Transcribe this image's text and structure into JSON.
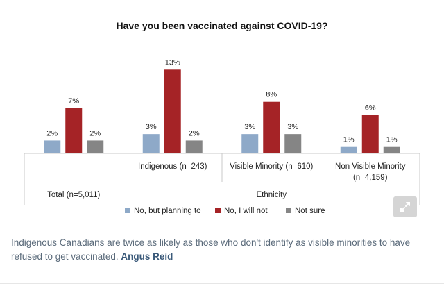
{
  "chart_data": {
    "type": "bar",
    "title": "Have you been vaccinated against COVID-19?",
    "categories": [
      "",
      "Indigenous (n=243)",
      "Visible Minority (n=610)",
      "Non Visible Minority (n=4,159)"
    ],
    "category_lines": [
      [],
      [
        "Indigenous (n=243)"
      ],
      [
        "Visible Minority (n=610)"
      ],
      [
        "Non Visible Minority",
        "(n=4,159)"
      ]
    ],
    "groups": [
      {
        "label": "Total (n=5,011)",
        "span": [
          0,
          0
        ]
      },
      {
        "label": "Ethnicity",
        "span": [
          1,
          3
        ]
      }
    ],
    "series": [
      {
        "name": "No, but planning to",
        "color": "#8ea9c8",
        "values": [
          2,
          3,
          3,
          1
        ]
      },
      {
        "name": "No, I will not",
        "color": "#a52326",
        "values": [
          7,
          13,
          8,
          6
        ]
      },
      {
        "name": "Not sure",
        "color": "#858585",
        "values": [
          2,
          2,
          3,
          1
        ]
      }
    ],
    "value_suffix": "%",
    "ylim": [
      0,
      14
    ],
    "legend_position": "bottom",
    "grid": false
  },
  "ui": {
    "expand_icon": "expand-arrows-icon"
  },
  "caption": {
    "text": "Indigenous Canadians are twice as likely as those who don't identify as visible minorities to have refused to get vaccinated.",
    "source": "Angus Reid"
  }
}
